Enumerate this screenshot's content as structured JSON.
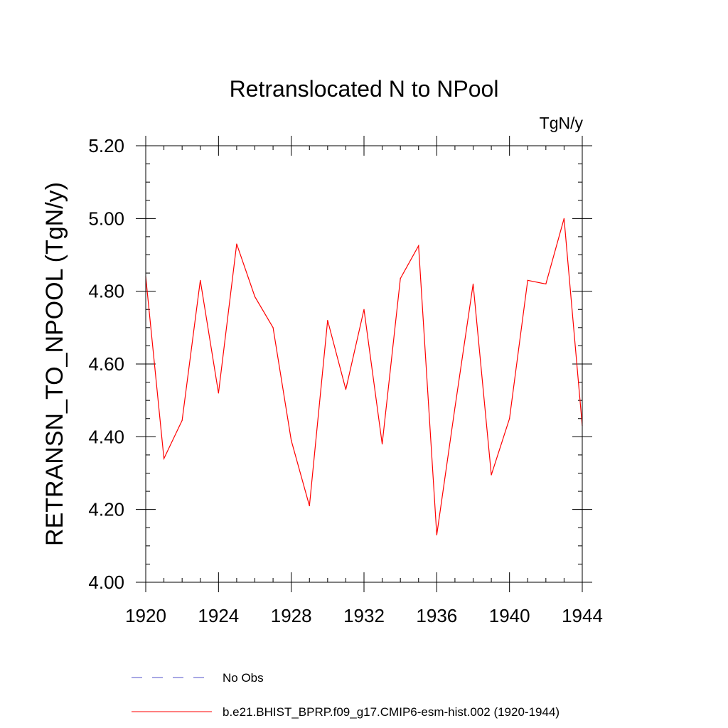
{
  "chart_data": {
    "type": "line",
    "title": "Retranslocated N to NPool",
    "units": "TgN/y",
    "ylabel": "RETRANSN_TO_NPOOL  (TgN/y)",
    "xlabel": "",
    "xlim": [
      1920,
      1944
    ],
    "ylim": [
      4.0,
      5.2
    ],
    "x_ticks": [
      1920,
      1924,
      1928,
      1932,
      1936,
      1940,
      1944
    ],
    "x_tick_labels": [
      "1920",
      "1924",
      "1928",
      "1932",
      "1936",
      "1940",
      "1944"
    ],
    "y_ticks": [
      4.0,
      4.2,
      4.4,
      4.6,
      4.8,
      5.0,
      5.2
    ],
    "y_tick_labels": [
      "4.00",
      "4.20",
      "4.40",
      "4.60",
      "4.80",
      "5.00",
      "5.20"
    ],
    "y_minor_step": 0.05,
    "x_minor_step": 1,
    "grid": false,
    "series": [
      {
        "name": "b.e21.BHIST_BPRP.f09_g17.CMIP6-esm-hist.002 (1920-1944)",
        "color": "#ff0000",
        "style": "solid",
        "x": [
          1920,
          1921,
          1922,
          1923,
          1924,
          1925,
          1926,
          1927,
          1928,
          1929,
          1930,
          1931,
          1932,
          1933,
          1934,
          1935,
          1936,
          1937,
          1938,
          1939,
          1940,
          1941,
          1942,
          1943,
          1944
        ],
        "values": [
          4.84,
          4.34,
          4.445,
          4.83,
          4.52,
          4.93,
          4.785,
          4.7,
          4.39,
          4.21,
          4.72,
          4.53,
          4.75,
          4.38,
          4.835,
          4.925,
          4.13,
          4.48,
          4.82,
          4.295,
          4.45,
          4.83,
          4.82,
          5.0,
          4.43
        ]
      }
    ],
    "legend": {
      "placement": "bottom",
      "entries": [
        {
          "label": "No Obs",
          "color": "#5050c8",
          "style": "dashed"
        },
        {
          "label": "b.e21.BHIST_BPRP.f09_g17.CMIP6-esm-hist.002 (1920-1944)",
          "color": "#ff0000",
          "style": "solid"
        }
      ]
    }
  }
}
